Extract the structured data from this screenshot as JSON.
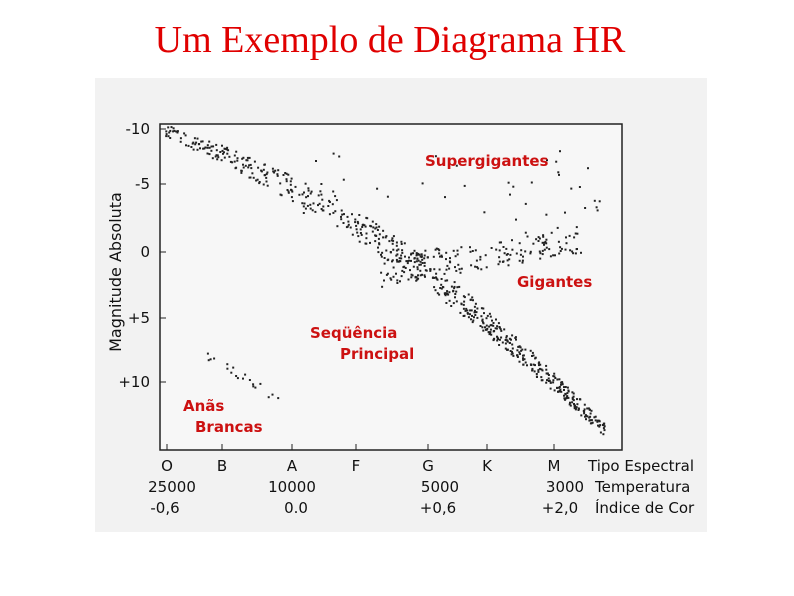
{
  "title": "Um Exemplo de Diagrama HR",
  "diagram": {
    "y_axis_label": "Magnitude Absoluta",
    "y_tick_labels": [
      "-10",
      "-5",
      "0",
      "+5",
      "+10"
    ],
    "spectral_types": [
      "O",
      "B",
      "A",
      "F",
      "G",
      "K",
      "M"
    ],
    "spectral_label": "Tipo Espectral",
    "temperatures": [
      "25000",
      "10000",
      "5000",
      "3000"
    ],
    "temperature_label": "Temperatura",
    "color_indices": [
      "-0,6",
      "0.0",
      "+0,6",
      "+2,0"
    ],
    "color_index_label": "Índice de Cor",
    "annotations": {
      "supergiants": "Supergigantes",
      "giants": "Gigantes",
      "main_sequence": [
        "Seqüência",
        "Principal"
      ],
      "white_dwarfs": [
        "Anãs",
        "Brancas"
      ]
    }
  }
}
